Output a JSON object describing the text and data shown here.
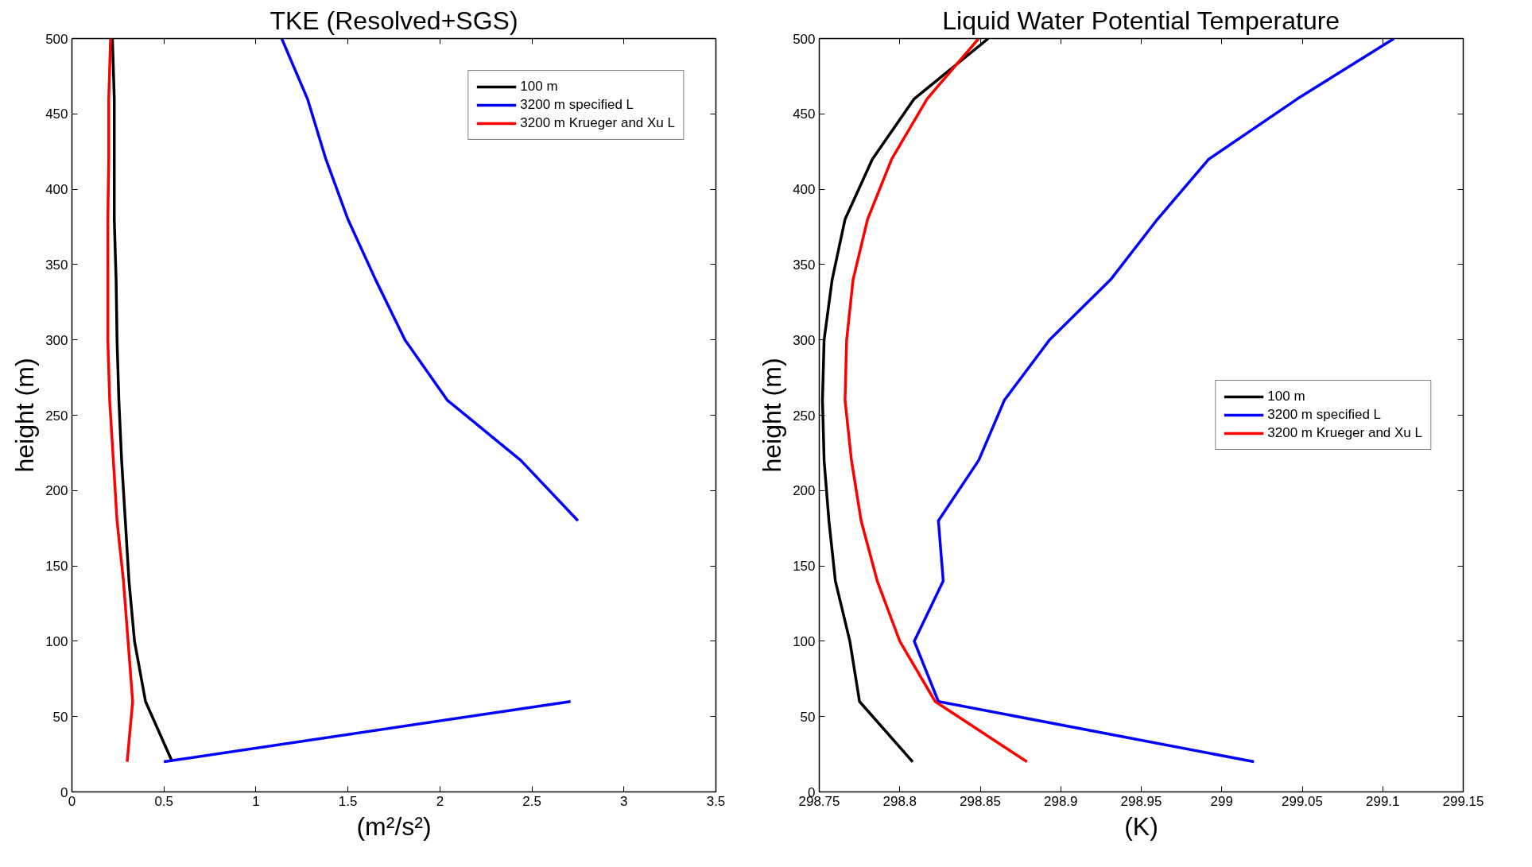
{
  "chart_data": [
    {
      "type": "line",
      "title": "TKE (Resolved+SGS)",
      "xlabel": "(m²/s²)",
      "ylabel": "height (m)",
      "orientation": "horizontal",
      "x": [
        20,
        60,
        100,
        140,
        180,
        220,
        260,
        300,
        340,
        380,
        420,
        460,
        500
      ],
      "series": [
        {
          "name": "100 m",
          "color": "#000000",
          "values": [
            0.545,
            0.4,
            0.34,
            0.31,
            0.29,
            0.27,
            0.255,
            0.245,
            0.24,
            0.23,
            0.23,
            0.23,
            0.22
          ]
        },
        {
          "name": "3200 m specified L",
          "color": "#0000ff",
          "values": [
            0.5,
            2.71,
            null,
            null,
            2.75,
            2.44,
            2.04,
            1.81,
            1.65,
            1.5,
            1.38,
            1.28,
            1.14
          ]
        },
        {
          "name": "3200 m Krueger and Xu L",
          "color": "#ff0000",
          "values": [
            0.3,
            0.33,
            0.305,
            0.28,
            0.245,
            0.225,
            0.205,
            0.195,
            0.195,
            0.195,
            0.2,
            0.2,
            0.21
          ]
        }
      ],
      "xlim": [
        0,
        3.5
      ],
      "xticks": [
        0,
        0.5,
        1,
        1.5,
        2,
        2.5,
        3,
        3.5
      ],
      "ylim": [
        0,
        500
      ],
      "yticks": [
        0,
        50,
        100,
        150,
        200,
        250,
        300,
        350,
        400,
        450,
        500
      ],
      "legend": "top right",
      "grid": false,
      "line_style": "solid",
      "marker": "none"
    },
    {
      "type": "line",
      "title": "Liquid Water Potential Temperature",
      "xlabel": "(K)",
      "ylabel": "height (m)",
      "orientation": "horizontal",
      "x": [
        20,
        60,
        100,
        140,
        180,
        220,
        260,
        300,
        340,
        380,
        420,
        460,
        500
      ],
      "series": [
        {
          "name": "100 m",
          "color": "#000000",
          "values": [
            298.808,
            298.775,
            298.769,
            298.76,
            298.756,
            298.753,
            298.752,
            298.753,
            298.758,
            298.766,
            298.783,
            298.809,
            298.855
          ]
        },
        {
          "name": "3200 m specified L",
          "color": "#0000ff",
          "values": [
            299.02,
            298.824,
            298.809,
            298.827,
            298.824,
            298.849,
            298.865,
            298.893,
            298.931,
            298.96,
            298.992,
            299.047,
            299.107
          ]
        },
        {
          "name": "3200 m Krueger and Xu L",
          "color": "#ff0000",
          "values": [
            298.879,
            298.822,
            298.8,
            298.786,
            298.776,
            298.77,
            298.766,
            298.767,
            298.771,
            298.78,
            298.795,
            298.817,
            298.849
          ]
        }
      ],
      "xlim": [
        298.75,
        299.15
      ],
      "xticks": [
        298.75,
        298.8,
        298.85,
        298.9,
        298.95,
        299,
        299.05,
        299.1,
        299.15
      ],
      "ylim": [
        0,
        500
      ],
      "yticks": [
        0,
        50,
        100,
        150,
        200,
        250,
        300,
        350,
        400,
        450,
        500
      ],
      "legend": "right",
      "grid": false,
      "line_style": "solid",
      "marker": "none"
    }
  ]
}
